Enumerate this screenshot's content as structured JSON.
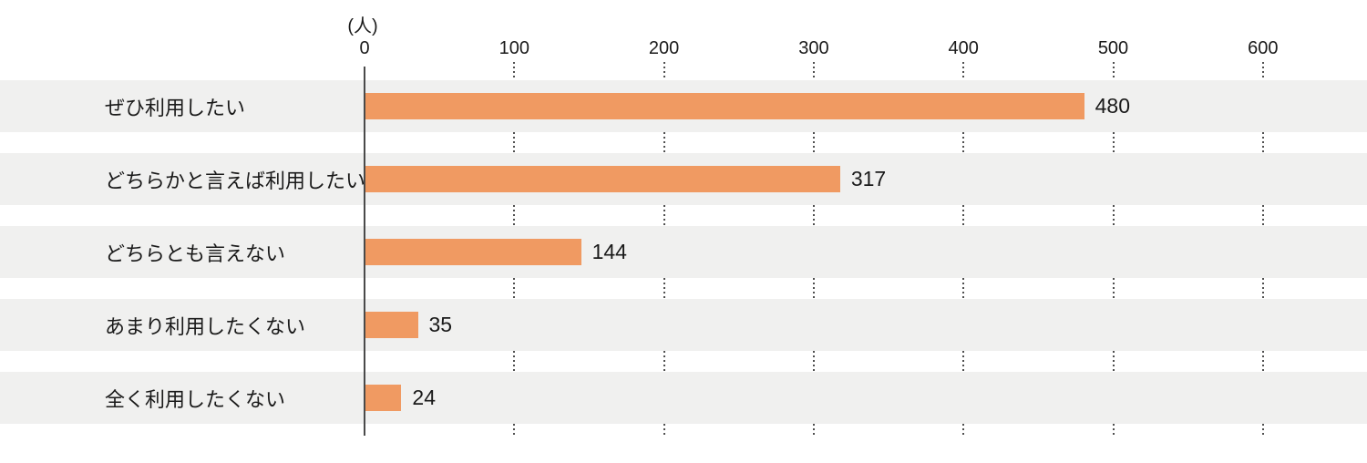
{
  "chart_data": {
    "type": "bar",
    "orientation": "horizontal",
    "title": "",
    "unit_label": "(人)",
    "categories": [
      "ぜひ利用したい",
      "どちらかと言えば利用したい",
      "どちらとも言えない",
      "あまり利用したくない",
      "全く利用したくない"
    ],
    "values": [
      480,
      317,
      144,
      35,
      24
    ],
    "x_ticks": [
      0,
      100,
      200,
      300,
      400,
      500,
      600
    ],
    "xlim": [
      0,
      670
    ],
    "legend_position": "none",
    "grid": "vertical-dotted-in-row-gaps",
    "colors": {
      "bar": "#f09a62",
      "row_band": "#f0f0ef",
      "axis_line": "#4a4a4a",
      "grid_dots": "#4f4f4f",
      "text": "#1a1a1a",
      "background": "#ffffff"
    }
  }
}
